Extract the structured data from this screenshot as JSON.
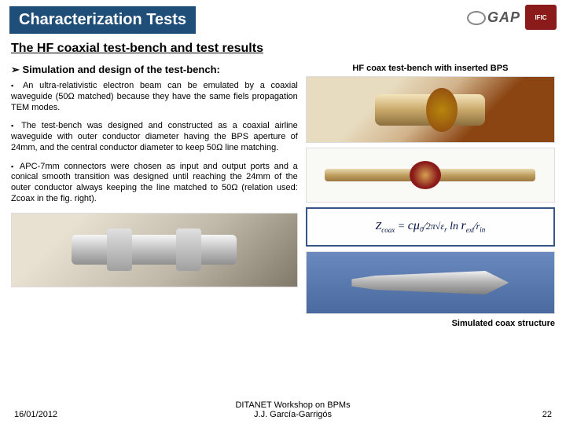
{
  "header": {
    "title": "Characterization Tests",
    "logo_gap_text": "GAP",
    "logo_ific_text": "IFIC"
  },
  "subtitle": "The HF coaxial test-bench and test results",
  "left": {
    "section_head": "Simulation and design of the test-bench:",
    "para1": "An ultra-relativistic electron beam can be emulated by a coaxial waveguide (50Ω matched) because they have the same fiels propagation TEM modes.",
    "para2": "The test-bench was designed and constructed as a coaxial airline waveguide with outer conductor diameter having the BPS aperture of 24mm, and the central conductor diameter to keep 50Ω line matching.",
    "para3": "APC-7mm connectors were chosen as input and output ports and a conical smooth transition was designed until reaching the 24mm of the outer conductor always keeping the line matched to 50Ω (relation used: Zcoax in the fig. right)."
  },
  "right": {
    "caption_top": "HF coax test-bench with inserted BPS",
    "equation": "Z_{coax} = (cμ₀ / 2π√ε_r) · ln(r_{ext}/r_{in})",
    "caption_bottom": "Simulated coax structure"
  },
  "footer": {
    "date": "16/01/2012",
    "center1": "DITANET Workshop on BPMs",
    "center2": "J.J. García-Garrigós",
    "page_num": "22"
  },
  "colors": {
    "title_bg": "#1f4e79",
    "title_fg": "#ffffff",
    "ific_bg": "#8b1a1a",
    "eq_border": "#335588"
  }
}
